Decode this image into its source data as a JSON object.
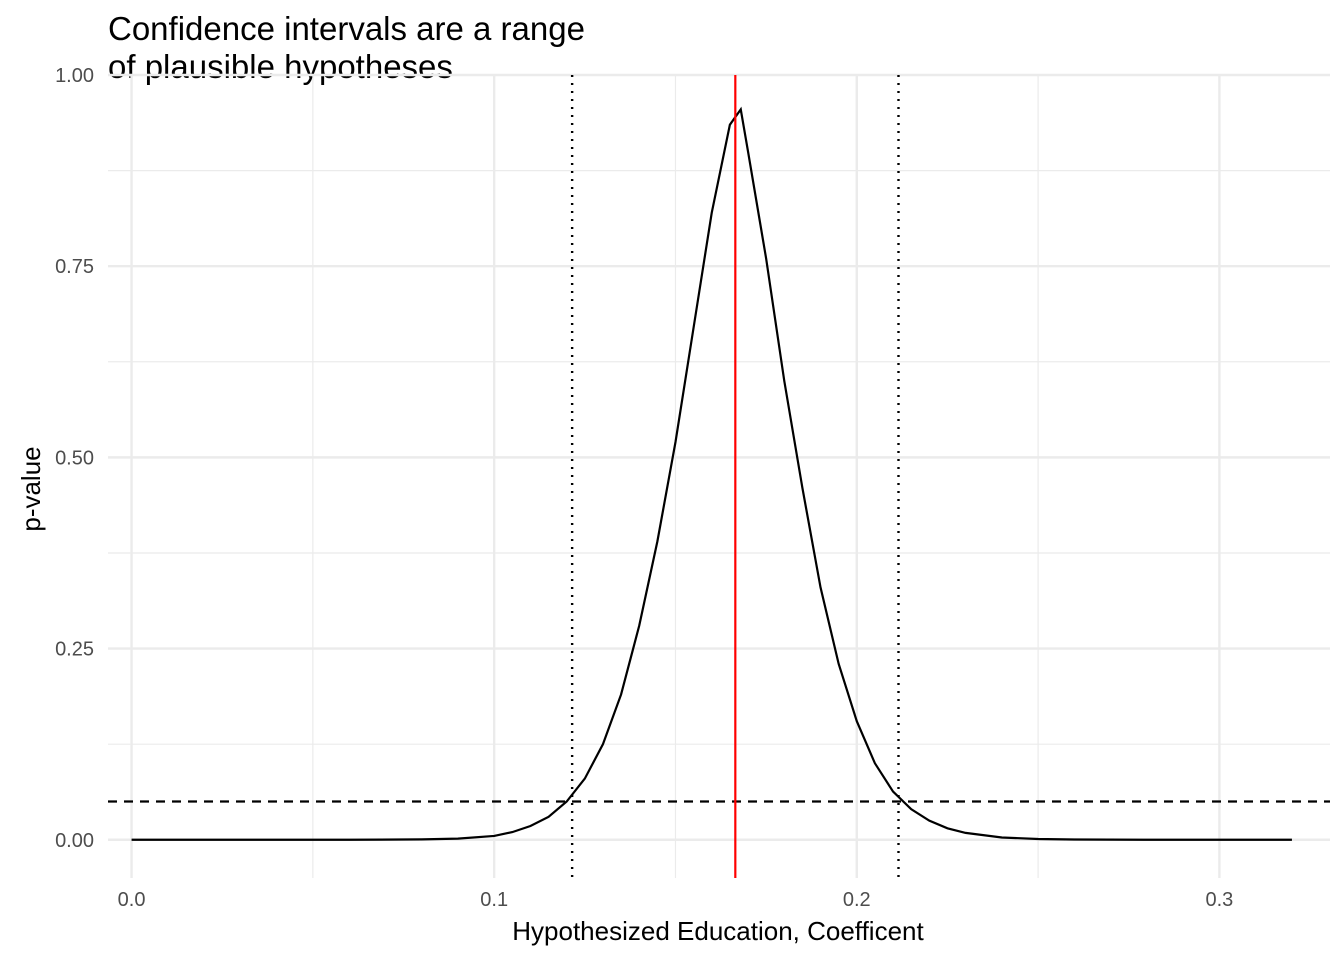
{
  "chart_data": {
    "type": "line",
    "title_lines": [
      "Confidence intervals are a range",
      "of plausible hypotheses"
    ],
    "xlabel": "Hypothesized Education, Coefficent",
    "ylabel": "p-value",
    "xlim": [
      -0.0065,
      0.3305
    ],
    "ylim": [
      -0.05,
      1.0
    ],
    "x_ticks": [
      0.0,
      0.1,
      0.2,
      0.3
    ],
    "x_tick_labels": [
      "0.0",
      "0.1",
      "0.2",
      "0.3"
    ],
    "y_ticks": [
      0.0,
      0.25,
      0.5,
      0.75,
      1.0
    ],
    "y_tick_labels": [
      "0.00",
      "0.25",
      "0.50",
      "0.75",
      "1.00"
    ],
    "grid": true,
    "estimate": 0.1665,
    "ci": [
      0.1215,
      0.2115
    ],
    "alpha": 0.05,
    "colors": {
      "curve": "#000000",
      "estimate": "#ff0000",
      "ci": "#000000",
      "alpha": "#000000",
      "grid": "#ebebeb"
    },
    "series": [
      {
        "x": [
          0.0,
          0.02,
          0.04,
          0.06,
          0.08,
          0.09,
          0.1,
          0.105,
          0.11,
          0.115,
          0.12,
          0.125,
          0.13,
          0.135,
          0.14,
          0.145,
          0.15,
          0.155,
          0.16,
          0.165,
          0.168,
          0.17,
          0.175,
          0.18,
          0.185,
          0.19,
          0.195,
          0.2,
          0.205,
          0.21,
          0.215,
          0.22,
          0.225,
          0.23,
          0.24,
          0.25,
          0.26,
          0.28,
          0.3,
          0.32
        ],
        "y": [
          0.0,
          0.0,
          0.0,
          0.0,
          0.0005,
          0.0015,
          0.005,
          0.01,
          0.018,
          0.03,
          0.05,
          0.08,
          0.125,
          0.19,
          0.28,
          0.39,
          0.52,
          0.67,
          0.82,
          0.935,
          0.955,
          0.9,
          0.76,
          0.6,
          0.46,
          0.33,
          0.23,
          0.155,
          0.1,
          0.063,
          0.04,
          0.025,
          0.015,
          0.009,
          0.003,
          0.001,
          0.0003,
          0.0,
          0.0,
          0.0
        ]
      }
    ]
  }
}
